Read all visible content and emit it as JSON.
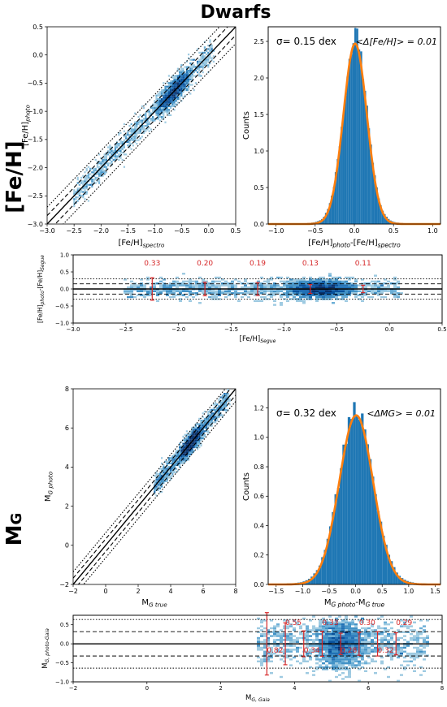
{
  "figure": {
    "title": "Dwarfs",
    "row_labels": {
      "feh": "[Fe/H]",
      "mg": "M",
      "mg_sub": "G"
    }
  },
  "chart_data": [
    {
      "id": "feh_scatter",
      "type": "heatmap",
      "xlabel": "[Fe/H]spectro",
      "ylabel": "[Fe/H]photo",
      "xlim": [
        -3.0,
        0.5
      ],
      "ylim": [
        -3.0,
        0.5
      ],
      "xticks": [
        "-3.0",
        "-2.5",
        "-2.0",
        "-1.5",
        "-1.0",
        "-0.5",
        "0.0",
        "0.5"
      ],
      "yticks": [
        "-3.0",
        "-2.5",
        "-2.0",
        "-1.5",
        "-1.0",
        "-0.5",
        "0.0",
        "0.5"
      ],
      "density_ridge": {
        "x_range": [
          -2.5,
          0.1
        ],
        "core": [
          -1.0,
          -0.3
        ]
      },
      "lines": [
        {
          "style": "solid",
          "offset": 0.0
        },
        {
          "style": "dashed",
          "offset": 0.15
        },
        {
          "style": "dashed",
          "offset": -0.15
        },
        {
          "style": "dotted",
          "offset": 0.3
        },
        {
          "style": "dotted",
          "offset": -0.3
        }
      ]
    },
    {
      "id": "feh_hist",
      "type": "bar",
      "xlabel": "[Fe/H]photo-[Fe/H]spectro",
      "ylabel": "Counts",
      "xlim": [
        -1.1,
        1.1
      ],
      "ylim": [
        0,
        2.7
      ],
      "xticks": [
        "-1.0",
        "-0.5",
        "0.0",
        "0.5",
        "1.0"
      ],
      "yticks": [
        "0.0",
        "0.5",
        "1.0",
        "1.5",
        "2.0",
        "2.5"
      ],
      "sigma_text": "σ= 0.15 dex",
      "mean_text": "<Δ[Fe/H]> = 0.01",
      "gaussian": {
        "mu": 0.01,
        "sigma": 0.15,
        "peak": 2.47
      },
      "bin_width": 0.025
    },
    {
      "id": "feh_residual",
      "type": "scatter",
      "xlabel": "[Fe/H]Segue",
      "ylabel": "[Fe/H]photo-[Fe/H]Segue",
      "xlim": [
        -3.0,
        0.5
      ],
      "ylim": [
        -1.0,
        1.0
      ],
      "xticks": [
        "-3.0",
        "-2.5",
        "-2.0",
        "-1.5",
        "-1.0",
        "-0.5",
        "0.0",
        "0.5"
      ],
      "yticks": [
        "-1.0",
        "-0.5",
        "0.0",
        "0.5",
        "1.0"
      ],
      "bins_x": [
        -2.25,
        -1.75,
        -1.25,
        -0.75,
        -0.25
      ],
      "bins_sigma": [
        0.33,
        0.2,
        0.19,
        0.13,
        0.11
      ],
      "labels": [
        "0.33",
        "0.20",
        "0.19",
        "0.13",
        "0.11"
      ],
      "hlines": [
        {
          "style": "solid",
          "y": 0.0
        },
        {
          "style": "dashed",
          "y": 0.15
        },
        {
          "style": "dashed",
          "y": -0.15
        },
        {
          "style": "dotted",
          "y": 0.3
        },
        {
          "style": "dotted",
          "y": -0.3
        }
      ]
    },
    {
      "id": "mg_scatter",
      "type": "heatmap",
      "xlabel": "MG true",
      "ylabel": "MG photo",
      "xlim": [
        -2,
        8
      ],
      "ylim": [
        -2,
        8
      ],
      "xticks": [
        "-2",
        "0",
        "2",
        "4",
        "6",
        "8"
      ],
      "yticks": [
        "-2",
        "0",
        "2",
        "4",
        "6",
        "8"
      ],
      "density_ridge": {
        "x_range": [
          3.0,
          7.6
        ],
        "core": [
          4.5,
          6.0
        ]
      },
      "lines": [
        {
          "style": "solid",
          "offset": 0.0
        },
        {
          "style": "dashed",
          "offset": 0.32
        },
        {
          "style": "dashed",
          "offset": -0.32
        },
        {
          "style": "dotted",
          "offset": 0.64
        },
        {
          "style": "dotted",
          "offset": -0.64
        }
      ]
    },
    {
      "id": "mg_hist",
      "type": "bar",
      "xlabel": "MG photo-MG true",
      "ylabel": "Counts",
      "xlim": [
        -1.65,
        1.6
      ],
      "ylim": [
        0,
        1.33
      ],
      "xticks": [
        "-1.5",
        "-1.0",
        "-0.5",
        "0.0",
        "0.5",
        "1.0",
        "1.5"
      ],
      "yticks": [
        "0.0",
        "0.2",
        "0.4",
        "0.6",
        "0.8",
        "1.0",
        "1.2"
      ],
      "sigma_text": "σ= 0.32 dex",
      "mean_text": "<ΔMG> = 0.01",
      "gaussian": {
        "mu": 0.01,
        "sigma": 0.32,
        "peak": 1.15
      },
      "bin_width": 0.05
    },
    {
      "id": "mg_residual",
      "type": "scatter",
      "xlabel": "MG, Gaia",
      "ylabel": "MG, photo-Gaia",
      "xlim": [
        -2,
        8
      ],
      "ylim": [
        -1.0,
        0.75
      ],
      "xticks": [
        "-2",
        "0",
        "2",
        "4",
        "6",
        "8"
      ],
      "yticks": [
        "-1.0",
        "-0.5",
        "0.0",
        "0.5"
      ],
      "bins_x": [
        3.25,
        3.75,
        4.25,
        4.75,
        5.25,
        5.75,
        6.25,
        6.75
      ],
      "bins_sigma": [
        0.82,
        0.55,
        0.34,
        0.33,
        0.28,
        0.3,
        0.32,
        0.29
      ],
      "labels": [
        {
          "text": "0.55",
          "x": 3.75,
          "pos": "above"
        },
        {
          "text": "0.33",
          "x": 4.75,
          "pos": "above"
        },
        {
          "text": "0.30",
          "x": 5.75,
          "pos": "above"
        },
        {
          "text": "0.29",
          "x": 6.75,
          "pos": "above"
        },
        {
          "text": "0.82",
          "x": 3.25,
          "pos": "below"
        },
        {
          "text": "0.34",
          "x": 4.25,
          "pos": "below"
        },
        {
          "text": "0.28",
          "x": 5.25,
          "pos": "below"
        },
        {
          "text": "0.32",
          "x": 6.25,
          "pos": "below"
        }
      ],
      "hlines": [
        {
          "style": "solid",
          "y": 0.0
        },
        {
          "style": "dashed",
          "y": 0.32
        },
        {
          "style": "dashed",
          "y": -0.32
        },
        {
          "style": "dotted",
          "y": 0.64
        },
        {
          "style": "dotted",
          "y": -0.64
        }
      ]
    }
  ],
  "colors": {
    "hist_bar": "#1f77b4",
    "gauss_curve": "#ff7f0e",
    "error_bar": "#d62728",
    "density_light": "#c6dbef",
    "density_dark": "#08306b"
  }
}
